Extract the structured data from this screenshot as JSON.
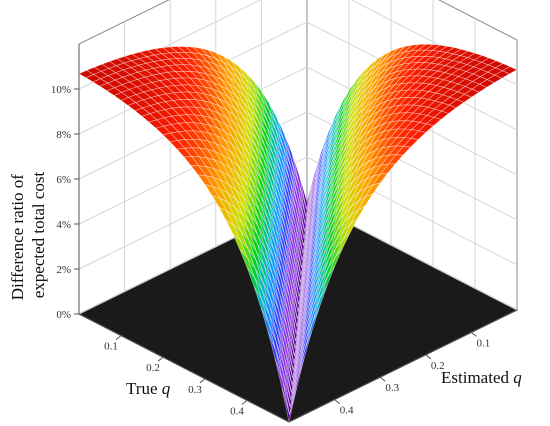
{
  "chart_data": {
    "type": "surface3d",
    "zlabel_line1": "Difference ratio of",
    "zlabel_line2": "expected total cost",
    "xlabel_prefix": "True ",
    "xlabel_var": "q",
    "ylabel_prefix": "Estimated ",
    "ylabel_var": "q",
    "z_ticks": [
      "0%",
      "2%",
      "4%",
      "6%",
      "8%",
      "10%"
    ],
    "true_q_ticks": [
      "0.1",
      "0.2",
      "0.3",
      "0.4"
    ],
    "est_q_ticks": [
      "0.1",
      "0.2",
      "0.3",
      "0.4"
    ],
    "xlim": [
      0,
      0.5
    ],
    "ylim": [
      0,
      0.5
    ],
    "zlim": [
      0,
      0.12
    ],
    "grid": true,
    "colormap": [
      "#5a00a0",
      "#8a2be2",
      "#3040ff",
      "#00b0ff",
      "#00d020",
      "#d0e000",
      "#ffa000",
      "#ff2000",
      "#c00000"
    ],
    "description_of_surface": "Difference ratio is near 0% along the diagonal where estimated q equals true q and rises to about 10-11% when the estimate is far from the true value"
  }
}
